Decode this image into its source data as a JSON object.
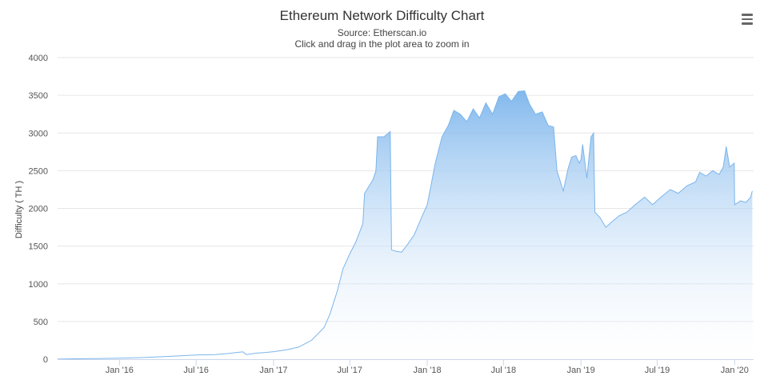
{
  "header": {
    "title": "Ethereum Network Difficulty Chart",
    "subtitle_source": "Source: Etherscan.io",
    "subtitle_hint": "Click and drag in the plot area to zoom in"
  },
  "menu": {
    "icon": "hamburger-menu-icon"
  },
  "colors": {
    "line": "#7cb5ec",
    "fill_top": "#7cb5ec",
    "fill_bottom": "#ffffff",
    "grid": "#e6e6e6",
    "axis": "#ccd6eb"
  },
  "chart_data": {
    "type": "area",
    "title": "Ethereum Network Difficulty Chart",
    "subtitle": "Source: Etherscan.io",
    "ylabel": "Difficulty ( TH )",
    "xlabel": "",
    "ylim": [
      0,
      4000
    ],
    "yticks": [
      0,
      500,
      1000,
      1500,
      2000,
      2500,
      3000,
      3500,
      4000
    ],
    "xlim": [
      "2015-08-07",
      "2020-02-15"
    ],
    "xticks": [
      {
        "date": "2016-01-01",
        "label": "Jan '16"
      },
      {
        "date": "2016-07-01",
        "label": "Jul '16"
      },
      {
        "date": "2017-01-01",
        "label": "Jan '17"
      },
      {
        "date": "2017-07-01",
        "label": "Jul '17"
      },
      {
        "date": "2018-01-01",
        "label": "Jan '18"
      },
      {
        "date": "2018-07-01",
        "label": "Jul '18"
      },
      {
        "date": "2019-01-01",
        "label": "Jan '19"
      },
      {
        "date": "2019-07-01",
        "label": "Jul '19"
      },
      {
        "date": "2020-01-01",
        "label": "Jan '20"
      }
    ],
    "grid": true,
    "series": [
      {
        "name": "Difficulty",
        "points": [
          [
            "2015-08-07",
            1
          ],
          [
            "2015-10-01",
            6
          ],
          [
            "2015-12-01",
            11
          ],
          [
            "2016-01-01",
            13
          ],
          [
            "2016-03-01",
            22
          ],
          [
            "2016-05-01",
            38
          ],
          [
            "2016-07-01",
            55
          ],
          [
            "2016-08-15",
            62
          ],
          [
            "2016-09-15",
            75
          ],
          [
            "2016-10-20",
            98
          ],
          [
            "2016-10-28",
            62
          ],
          [
            "2016-11-20",
            80
          ],
          [
            "2016-12-15",
            90
          ],
          [
            "2017-01-01",
            100
          ],
          [
            "2017-02-01",
            125
          ],
          [
            "2017-03-01",
            160
          ],
          [
            "2017-04-01",
            250
          ],
          [
            "2017-05-01",
            420
          ],
          [
            "2017-05-15",
            600
          ],
          [
            "2017-06-01",
            900
          ],
          [
            "2017-06-15",
            1200
          ],
          [
            "2017-07-01",
            1400
          ],
          [
            "2017-07-15",
            1550
          ],
          [
            "2017-08-01",
            1800
          ],
          [
            "2017-08-05",
            2200
          ],
          [
            "2017-08-25",
            2380
          ],
          [
            "2017-09-01",
            2500
          ],
          [
            "2017-09-05",
            2950
          ],
          [
            "2017-09-20",
            2950
          ],
          [
            "2017-10-05",
            3020
          ],
          [
            "2017-10-08",
            1450
          ],
          [
            "2017-10-20",
            1430
          ],
          [
            "2017-11-01",
            1420
          ],
          [
            "2017-11-15",
            1520
          ],
          [
            "2017-12-01",
            1650
          ],
          [
            "2017-12-20",
            1900
          ],
          [
            "2018-01-01",
            2050
          ],
          [
            "2018-01-20",
            2600
          ],
          [
            "2018-02-05",
            2950
          ],
          [
            "2018-02-20",
            3100
          ],
          [
            "2018-03-05",
            3300
          ],
          [
            "2018-03-20",
            3250
          ],
          [
            "2018-04-05",
            3150
          ],
          [
            "2018-04-20",
            3320
          ],
          [
            "2018-05-05",
            3200
          ],
          [
            "2018-05-20",
            3400
          ],
          [
            "2018-06-05",
            3250
          ],
          [
            "2018-06-20",
            3480
          ],
          [
            "2018-07-05",
            3520
          ],
          [
            "2018-07-20",
            3420
          ],
          [
            "2018-08-05",
            3550
          ],
          [
            "2018-08-20",
            3560
          ],
          [
            "2018-09-01",
            3380
          ],
          [
            "2018-09-15",
            3250
          ],
          [
            "2018-10-01",
            3280
          ],
          [
            "2018-10-15",
            3100
          ],
          [
            "2018-10-28",
            3080
          ],
          [
            "2018-11-05",
            2500
          ],
          [
            "2018-11-20",
            2230
          ],
          [
            "2018-12-01",
            2520
          ],
          [
            "2018-12-10",
            2680
          ],
          [
            "2018-12-20",
            2700
          ],
          [
            "2018-12-28",
            2600
          ],
          [
            "2019-01-01",
            2650
          ],
          [
            "2019-01-05",
            2850
          ],
          [
            "2019-01-15",
            2400
          ],
          [
            "2019-01-25",
            2950
          ],
          [
            "2019-01-31",
            3000
          ],
          [
            "2019-02-03",
            1950
          ],
          [
            "2019-02-15",
            1880
          ],
          [
            "2019-03-01",
            1750
          ],
          [
            "2019-03-15",
            1820
          ],
          [
            "2019-04-01",
            1900
          ],
          [
            "2019-04-20",
            1950
          ],
          [
            "2019-05-10",
            2050
          ],
          [
            "2019-06-01",
            2150
          ],
          [
            "2019-06-20",
            2050
          ],
          [
            "2019-07-10",
            2150
          ],
          [
            "2019-08-01",
            2250
          ],
          [
            "2019-08-20",
            2200
          ],
          [
            "2019-09-10",
            2300
          ],
          [
            "2019-09-30",
            2350
          ],
          [
            "2019-10-10",
            2480
          ],
          [
            "2019-10-25",
            2430
          ],
          [
            "2019-11-10",
            2500
          ],
          [
            "2019-11-25",
            2450
          ],
          [
            "2019-12-05",
            2550
          ],
          [
            "2019-12-12",
            2820
          ],
          [
            "2019-12-20",
            2550
          ],
          [
            "2019-12-31",
            2600
          ],
          [
            "2020-01-01",
            2050
          ],
          [
            "2020-01-15",
            2100
          ],
          [
            "2020-01-28",
            2080
          ],
          [
            "2020-02-08",
            2150
          ],
          [
            "2020-02-12",
            2230
          ]
        ]
      }
    ]
  }
}
